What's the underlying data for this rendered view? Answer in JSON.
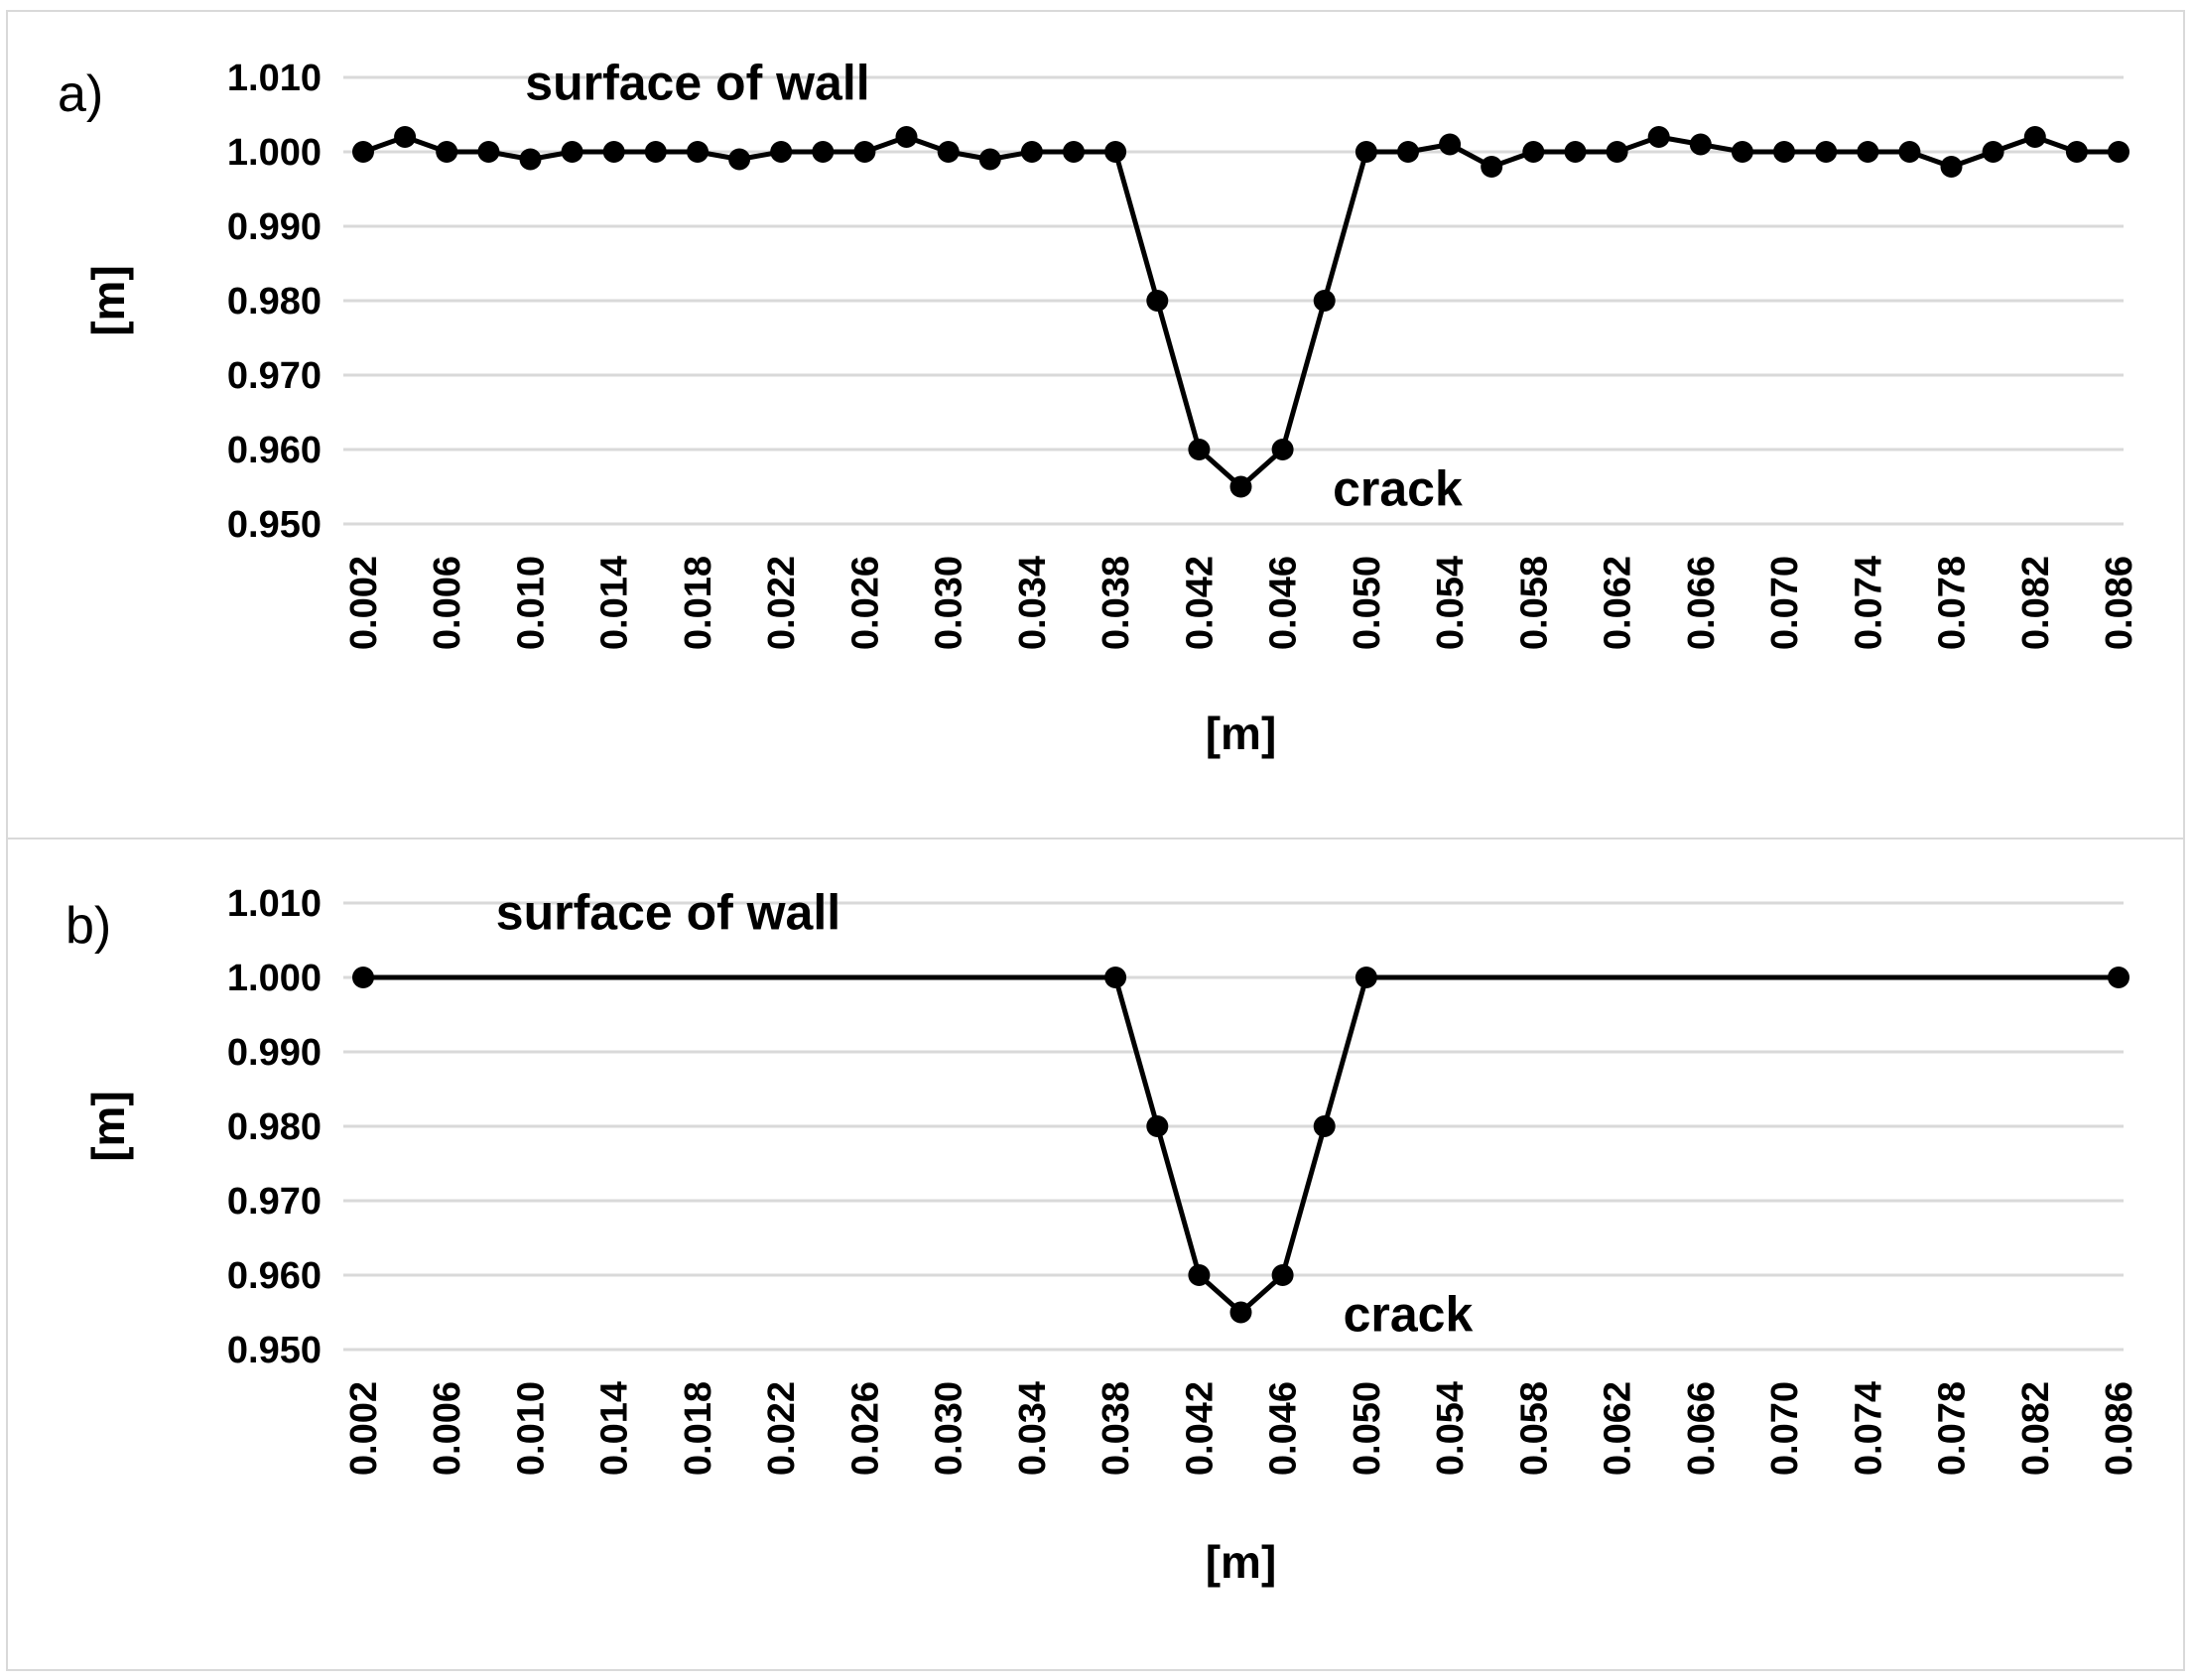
{
  "chart_data": [
    {
      "type": "line",
      "panel_label": "a)",
      "xlabel": "[m]",
      "ylabel": "[m]",
      "ylim": [
        0.95,
        1.01
      ],
      "yticks": [
        "1.010",
        "1.000",
        "0.990",
        "0.980",
        "0.970",
        "0.960",
        "0.950"
      ],
      "xticks": [
        "0.002",
        "0.006",
        "0.010",
        "0.014",
        "0.018",
        "0.022",
        "0.026",
        "0.030",
        "0.034",
        "0.038",
        "0.042",
        "0.046",
        "0.050",
        "0.054",
        "0.058",
        "0.062",
        "0.066",
        "0.070",
        "0.074",
        "0.078",
        "0.082",
        "0.086"
      ],
      "xlim": [
        0.002,
        0.086
      ],
      "grid": true,
      "annotations": [
        {
          "text": "surface of wall",
          "x": 0.018,
          "y": 1.007
        },
        {
          "text": "crack",
          "x": 0.0515,
          "y": 0.9525
        }
      ],
      "series": [
        {
          "x": [
            0.002,
            0.004,
            0.006,
            0.008,
            0.01,
            0.012,
            0.014,
            0.016,
            0.018,
            0.02,
            0.022,
            0.024,
            0.026,
            0.028,
            0.03,
            0.032,
            0.034,
            0.036,
            0.038,
            0.04,
            0.042,
            0.044,
            0.046,
            0.048,
            0.05,
            0.052,
            0.054,
            0.056,
            0.058,
            0.06,
            0.062,
            0.064,
            0.066,
            0.068,
            0.07,
            0.072,
            0.074,
            0.076,
            0.078,
            0.08,
            0.082,
            0.084,
            0.086
          ],
          "y": [
            1.0,
            1.002,
            1.0,
            1.0,
            0.999,
            1.0,
            1.0,
            1.0,
            1.0,
            0.999,
            1.0,
            1.0,
            1.0,
            1.002,
            1.0,
            0.999,
            1.0,
            1.0,
            1.0,
            0.98,
            0.96,
            0.955,
            0.96,
            0.98,
            1.0,
            1.0,
            1.001,
            0.998,
            1.0,
            1.0,
            1.0,
            1.002,
            1.001,
            1.0,
            1.0,
            1.0,
            1.0,
            1.0,
            0.998,
            1.0,
            1.002,
            1.0,
            1.0
          ]
        }
      ]
    },
    {
      "type": "line",
      "panel_label": "b)",
      "xlabel": "[m]",
      "ylabel": "[m]",
      "ylim": [
        0.95,
        1.01
      ],
      "yticks": [
        "1.010",
        "1.000",
        "0.990",
        "0.980",
        "0.970",
        "0.960",
        "0.950"
      ],
      "xticks": [
        "0.002",
        "0.006",
        "0.010",
        "0.014",
        "0.018",
        "0.022",
        "0.026",
        "0.030",
        "0.034",
        "0.038",
        "0.042",
        "0.046",
        "0.050",
        "0.054",
        "0.058",
        "0.062",
        "0.066",
        "0.070",
        "0.074",
        "0.078",
        "0.082",
        "0.086"
      ],
      "xlim": [
        0.002,
        0.086
      ],
      "grid": true,
      "annotations": [
        {
          "text": "surface of wall",
          "x": 0.0166,
          "y": 1.0065
        },
        {
          "text": "crack",
          "x": 0.052,
          "y": 0.9525
        }
      ],
      "series": [
        {
          "x": [
            0.002,
            0.038,
            0.04,
            0.042,
            0.044,
            0.046,
            0.048,
            0.05,
            0.086
          ],
          "y": [
            1.0,
            1.0,
            0.98,
            0.96,
            0.955,
            0.96,
            0.98,
            1.0,
            1.0
          ]
        }
      ]
    }
  ]
}
